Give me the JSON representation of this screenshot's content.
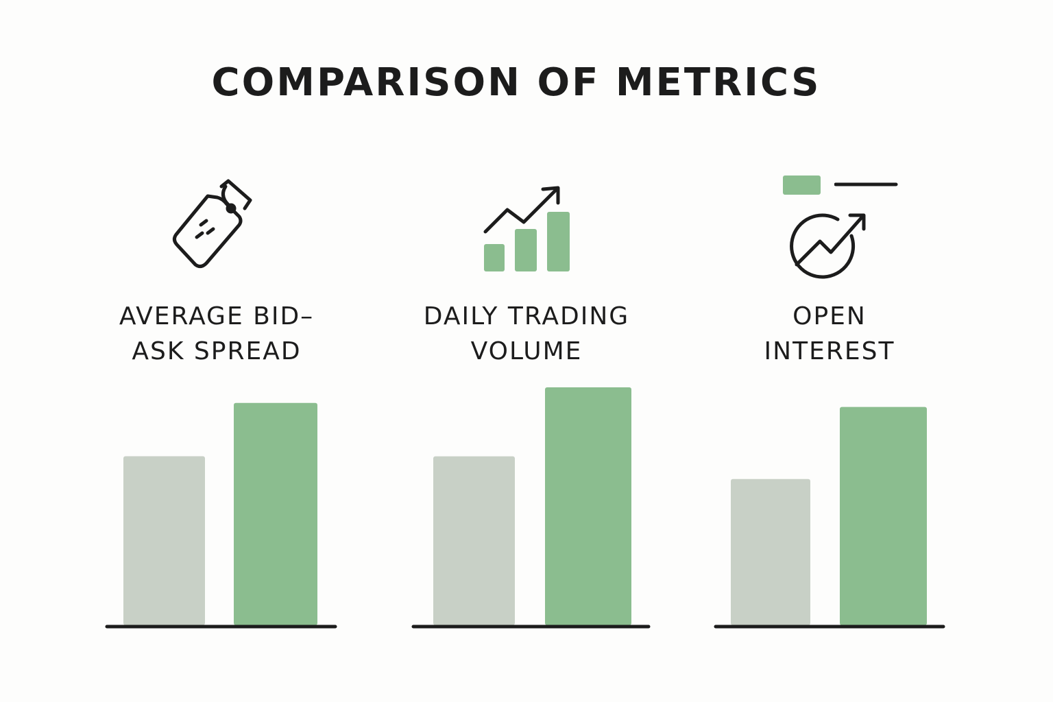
{
  "title": "COMPARISON OF METRICS",
  "colors": {
    "accent": "#8bbd8f",
    "neutral": "#c8d0c6",
    "ink": "#1c1c1c"
  },
  "chart_data": [
    {
      "type": "bar",
      "title": "AVERAGE BID–\nASK SPREAD",
      "icon": "price-tag-icon",
      "series": [
        {
          "values": [
            0.76
          ],
          "color": "#c8d0c6"
        },
        {
          "values": [
            1.0
          ],
          "color": "#8bbd8f"
        }
      ],
      "ylim": [
        0,
        1.07
      ]
    },
    {
      "type": "bar",
      "title": "DAILY TRADING\nVOLUME",
      "icon": "trending-bars-icon",
      "series": [
        {
          "values": [
            0.71
          ],
          "color": "#c8d0c6"
        },
        {
          "values": [
            1.0
          ],
          "color": "#8bbd8f"
        }
      ],
      "ylim": [
        0,
        1.0
      ]
    },
    {
      "type": "bar",
      "title": "OPEN\nINTEREST",
      "icon": "circle-growth-arrow-icon",
      "legend_icons": [
        "legend-swatch-icon",
        "legend-line-icon"
      ],
      "series": [
        {
          "values": [
            0.67
          ],
          "color": "#c8d0c6"
        },
        {
          "values": [
            1.0
          ],
          "color": "#8bbd8f"
        }
      ],
      "ylim": [
        0,
        1.09
      ]
    }
  ]
}
